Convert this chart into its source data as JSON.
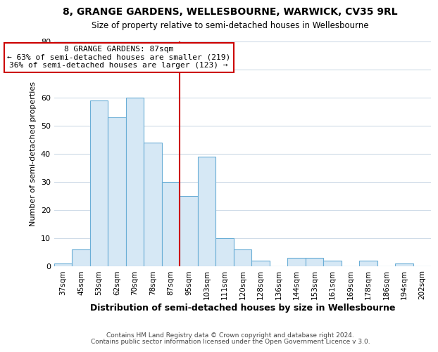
{
  "title1": "8, GRANGE GARDENS, WELLESBOURNE, WARWICK, CV35 9RL",
  "title2": "Size of property relative to semi-detached houses in Wellesbourne",
  "xlabel": "Distribution of semi-detached houses by size in Wellesbourne",
  "ylabel": "Number of semi-detached properties",
  "footer1": "Contains HM Land Registry data © Crown copyright and database right 2024.",
  "footer2": "Contains public sector information licensed under the Open Government Licence v 3.0.",
  "categories": [
    "37sqm",
    "45sqm",
    "53sqm",
    "62sqm",
    "70sqm",
    "78sqm",
    "87sqm",
    "95sqm",
    "103sqm",
    "111sqm",
    "120sqm",
    "128sqm",
    "136sqm",
    "144sqm",
    "153sqm",
    "161sqm",
    "169sqm",
    "178sqm",
    "186sqm",
    "194sqm",
    "202sqm"
  ],
  "values": [
    1,
    6,
    59,
    53,
    60,
    44,
    30,
    25,
    39,
    10,
    6,
    2,
    0,
    3,
    3,
    2,
    0,
    2,
    0,
    1,
    0
  ],
  "bar_color": "#d6e8f5",
  "bar_edge_color": "#6aaed6",
  "highlight_index": 6,
  "highlight_line_color": "#cc0000",
  "annotation_title": "8 GRANGE GARDENS: 87sqm",
  "annotation_line1": "← 63% of semi-detached houses are smaller (219)",
  "annotation_line2": "36% of semi-detached houses are larger (123) →",
  "annotation_box_edge": "#cc0000",
  "ylim": [
    0,
    80
  ],
  "yticks": [
    0,
    10,
    20,
    30,
    40,
    50,
    60,
    70,
    80
  ],
  "background_color": "#ffffff",
  "grid_color": "#d0dce8"
}
